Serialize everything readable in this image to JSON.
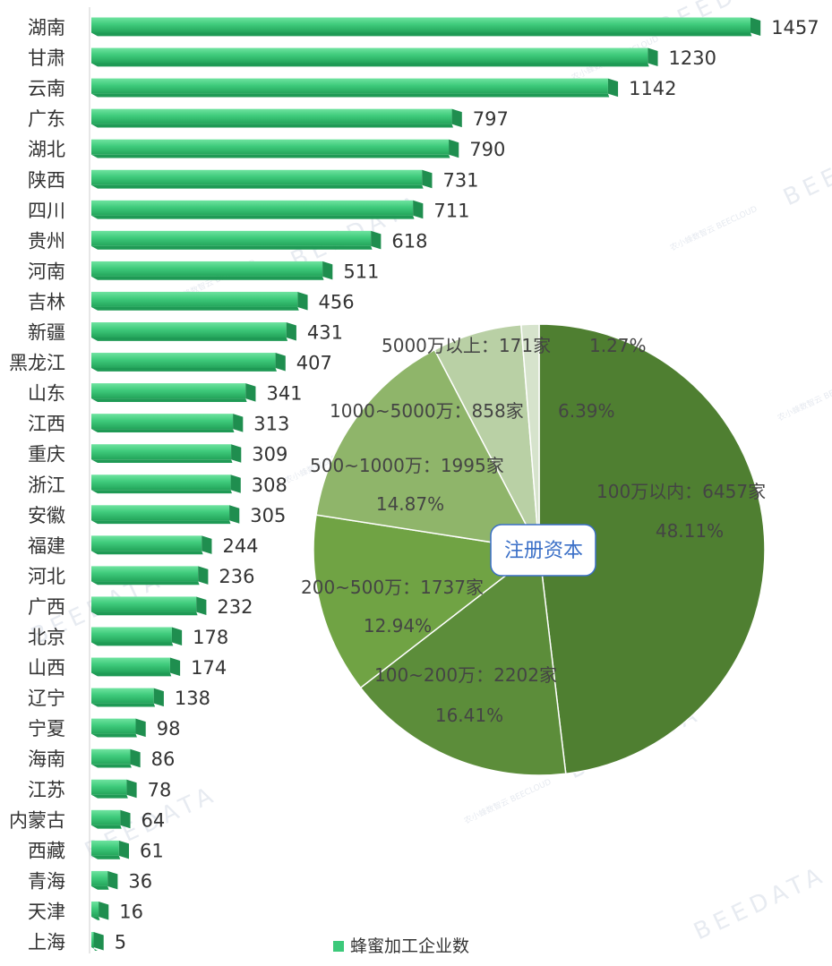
{
  "chart_data": [
    {
      "type": "bar",
      "orientation": "horizontal",
      "categories": [
        "湖南",
        "甘肃",
        "云南",
        "广东",
        "湖北",
        "陕西",
        "四川",
        "贵州",
        "河南",
        "吉林",
        "新疆",
        "黑龙江",
        "山东",
        "江西",
        "重庆",
        "浙江",
        "安徽",
        "福建",
        "河北",
        "广西",
        "北京",
        "山西",
        "辽宁",
        "宁夏",
        "海南",
        "江苏",
        "内蒙古",
        "西藏",
        "青海",
        "天津",
        "上海"
      ],
      "series": [
        {
          "name": "蜂蜜加工企业数",
          "values": [
            1457,
            1230,
            1142,
            797,
            790,
            731,
            711,
            618,
            511,
            456,
            431,
            407,
            341,
            313,
            309,
            308,
            305,
            244,
            236,
            232,
            178,
            174,
            138,
            98,
            86,
            78,
            64,
            61,
            36,
            16,
            5
          ]
        }
      ],
      "xlim": [
        0,
        1457
      ],
      "grid": false,
      "legend": "bottom-center",
      "colors": {
        "bar_top": "#5fdc93",
        "bar_mid": "#3cc97a",
        "bar_bottom": "#25a95d",
        "bar_end": "#1f8e4f",
        "axis": "#cfcfcf",
        "label": "#333333"
      }
    },
    {
      "type": "pie",
      "center_label": "注册资本",
      "slices": [
        {
          "label": "100万以内：6457家",
          "percent_label": "48.11%",
          "value": 6457,
          "color": "#4f7f31"
        },
        {
          "label": "100~200万：2202家",
          "percent_label": "16.41%",
          "value": 2202,
          "color": "#5c8d3a"
        },
        {
          "label": "200~500万：1737家",
          "percent_label": "12.94%",
          "value": 1737,
          "color": "#70a344"
        },
        {
          "label": "500~1000万：1995家",
          "percent_label": "14.87%",
          "value": 1995,
          "color": "#8fb56a"
        },
        {
          "label": "1000~5000万：858家",
          "percent_label": "6.39%",
          "value": 858,
          "color": "#b9d0a5"
        },
        {
          "label": "5000万以上：171家",
          "percent_label": "1.27%",
          "value": 171,
          "color": "#d6e3cc"
        }
      ],
      "colors": {
        "label": "#444444",
        "center_text": "#3a6fc7",
        "center_border": "#3a6fc7"
      }
    }
  ],
  "watermark": {
    "text": "BEEDATA",
    "brand": "农小蜂数智云",
    "brand_en": "BEECLOUD"
  }
}
